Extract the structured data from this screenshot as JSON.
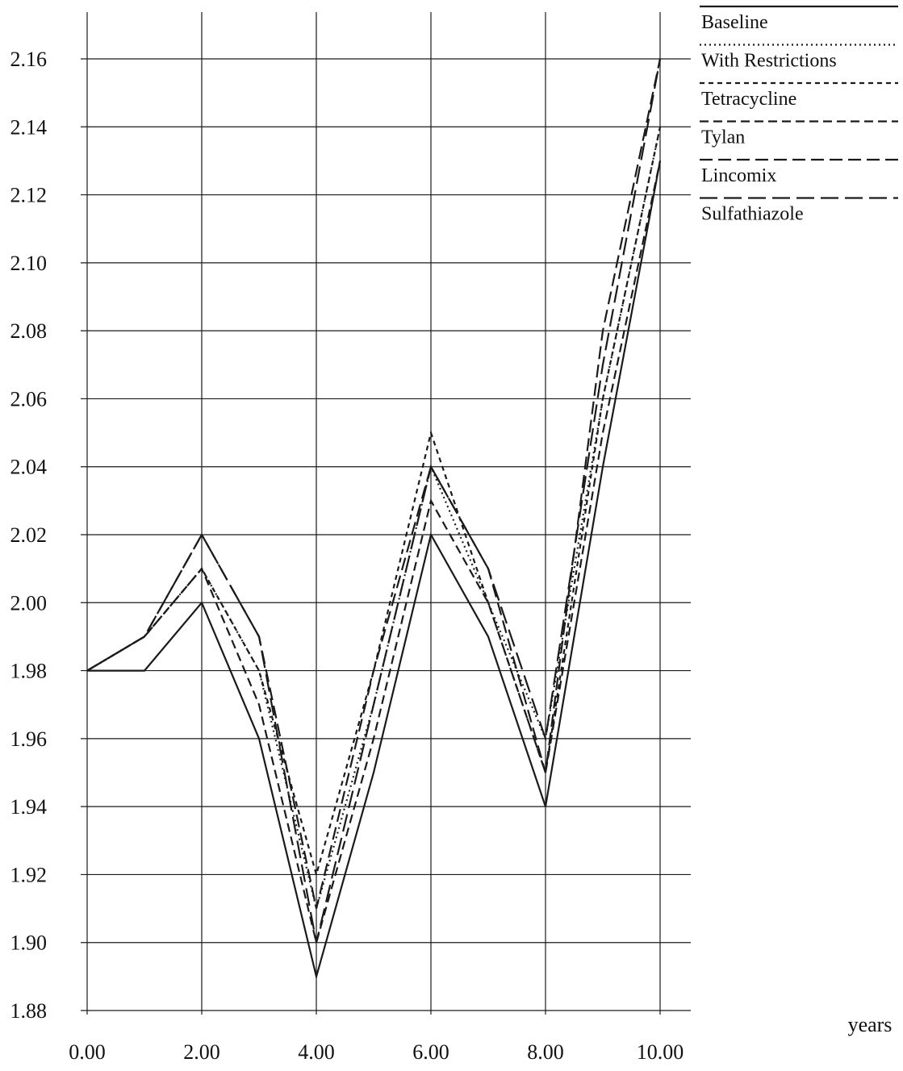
{
  "chart_data": {
    "type": "line",
    "title": "",
    "xlabel": "years",
    "ylabel": "",
    "x": [
      0,
      1,
      2,
      3,
      4,
      5,
      6,
      7,
      8,
      9,
      10
    ],
    "xticks": [
      "0.00",
      "2.00",
      "4.00",
      "6.00",
      "8.00",
      "10.00"
    ],
    "xtick_values": [
      0,
      2,
      4,
      6,
      8,
      10
    ],
    "yticks": [
      "1.88",
      "1.90",
      "1.92",
      "1.94",
      "1.96",
      "1.98",
      "2.00",
      "2.02",
      "2.04",
      "2.06",
      "2.08",
      "2.10",
      "2.12",
      "2.14",
      "2.16"
    ],
    "ytick_values": [
      1.88,
      1.9,
      1.92,
      1.94,
      1.96,
      1.98,
      2.0,
      2.02,
      2.04,
      2.06,
      2.08,
      2.1,
      2.12,
      2.14,
      2.16
    ],
    "xlim": [
      0,
      10
    ],
    "ylim": [
      1.88,
      2.17
    ],
    "grid": true,
    "legend_position": "top-right",
    "series": [
      {
        "name": "Baseline",
        "dash": "solid",
        "values": [
          1.98,
          1.98,
          2.0,
          1.96,
          1.89,
          1.95,
          2.02,
          1.99,
          1.94,
          2.04,
          2.13
        ]
      },
      {
        "name": "With Restrictions",
        "dash": "dotted",
        "values": [
          1.98,
          1.99,
          2.01,
          1.98,
          1.91,
          1.97,
          2.04,
          2.0,
          1.96,
          2.06,
          2.14
        ]
      },
      {
        "name": "Tetracycline",
        "dash": "short-dash",
        "values": [
          1.98,
          1.99,
          2.01,
          1.98,
          1.92,
          1.98,
          2.05,
          2.0,
          1.95,
          2.06,
          2.14
        ]
      },
      {
        "name": "Tylan",
        "dash": "medium-dash",
        "values": [
          1.98,
          1.99,
          2.01,
          1.97,
          1.9,
          1.96,
          2.03,
          2.0,
          1.95,
          2.05,
          2.13
        ]
      },
      {
        "name": "Lincomix",
        "dash": "long-dash",
        "values": [
          1.98,
          1.99,
          2.02,
          1.99,
          1.91,
          1.98,
          2.04,
          2.01,
          1.95,
          2.08,
          2.16
        ]
      },
      {
        "name": "Sulfathiazole",
        "dash": "extra-long-dash",
        "values": [
          1.98,
          1.99,
          2.02,
          1.99,
          1.9,
          1.97,
          2.04,
          2.01,
          1.96,
          2.07,
          2.16
        ]
      }
    ]
  }
}
